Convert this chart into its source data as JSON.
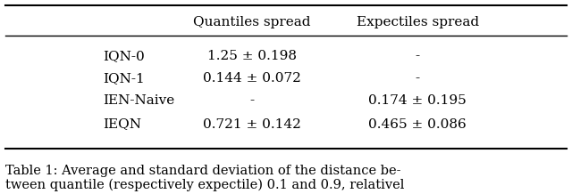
{
  "col_headers": [
    "",
    "Quantiles spread",
    "Expectiles spread"
  ],
  "rows": [
    [
      "IQN-0",
      "1.25 ± 0.198",
      "-"
    ],
    [
      "IQN-1",
      "0.144 ± 0.072",
      "-"
    ],
    [
      "IEN-Naive",
      "-",
      "0.174 ± 0.195"
    ],
    [
      "IEQN",
      "0.721 ± 0.142",
      "0.465 ± 0.086"
    ]
  ],
  "caption": "Table 1: Average and standard deviation of the distance be-\ntween quantile (respectively expectile) 0.1 and 0.9, relativel",
  "bg_color": "#ffffff",
  "text_color": "#000000",
  "header_fontsize": 11,
  "body_fontsize": 11,
  "caption_fontsize": 10.5
}
